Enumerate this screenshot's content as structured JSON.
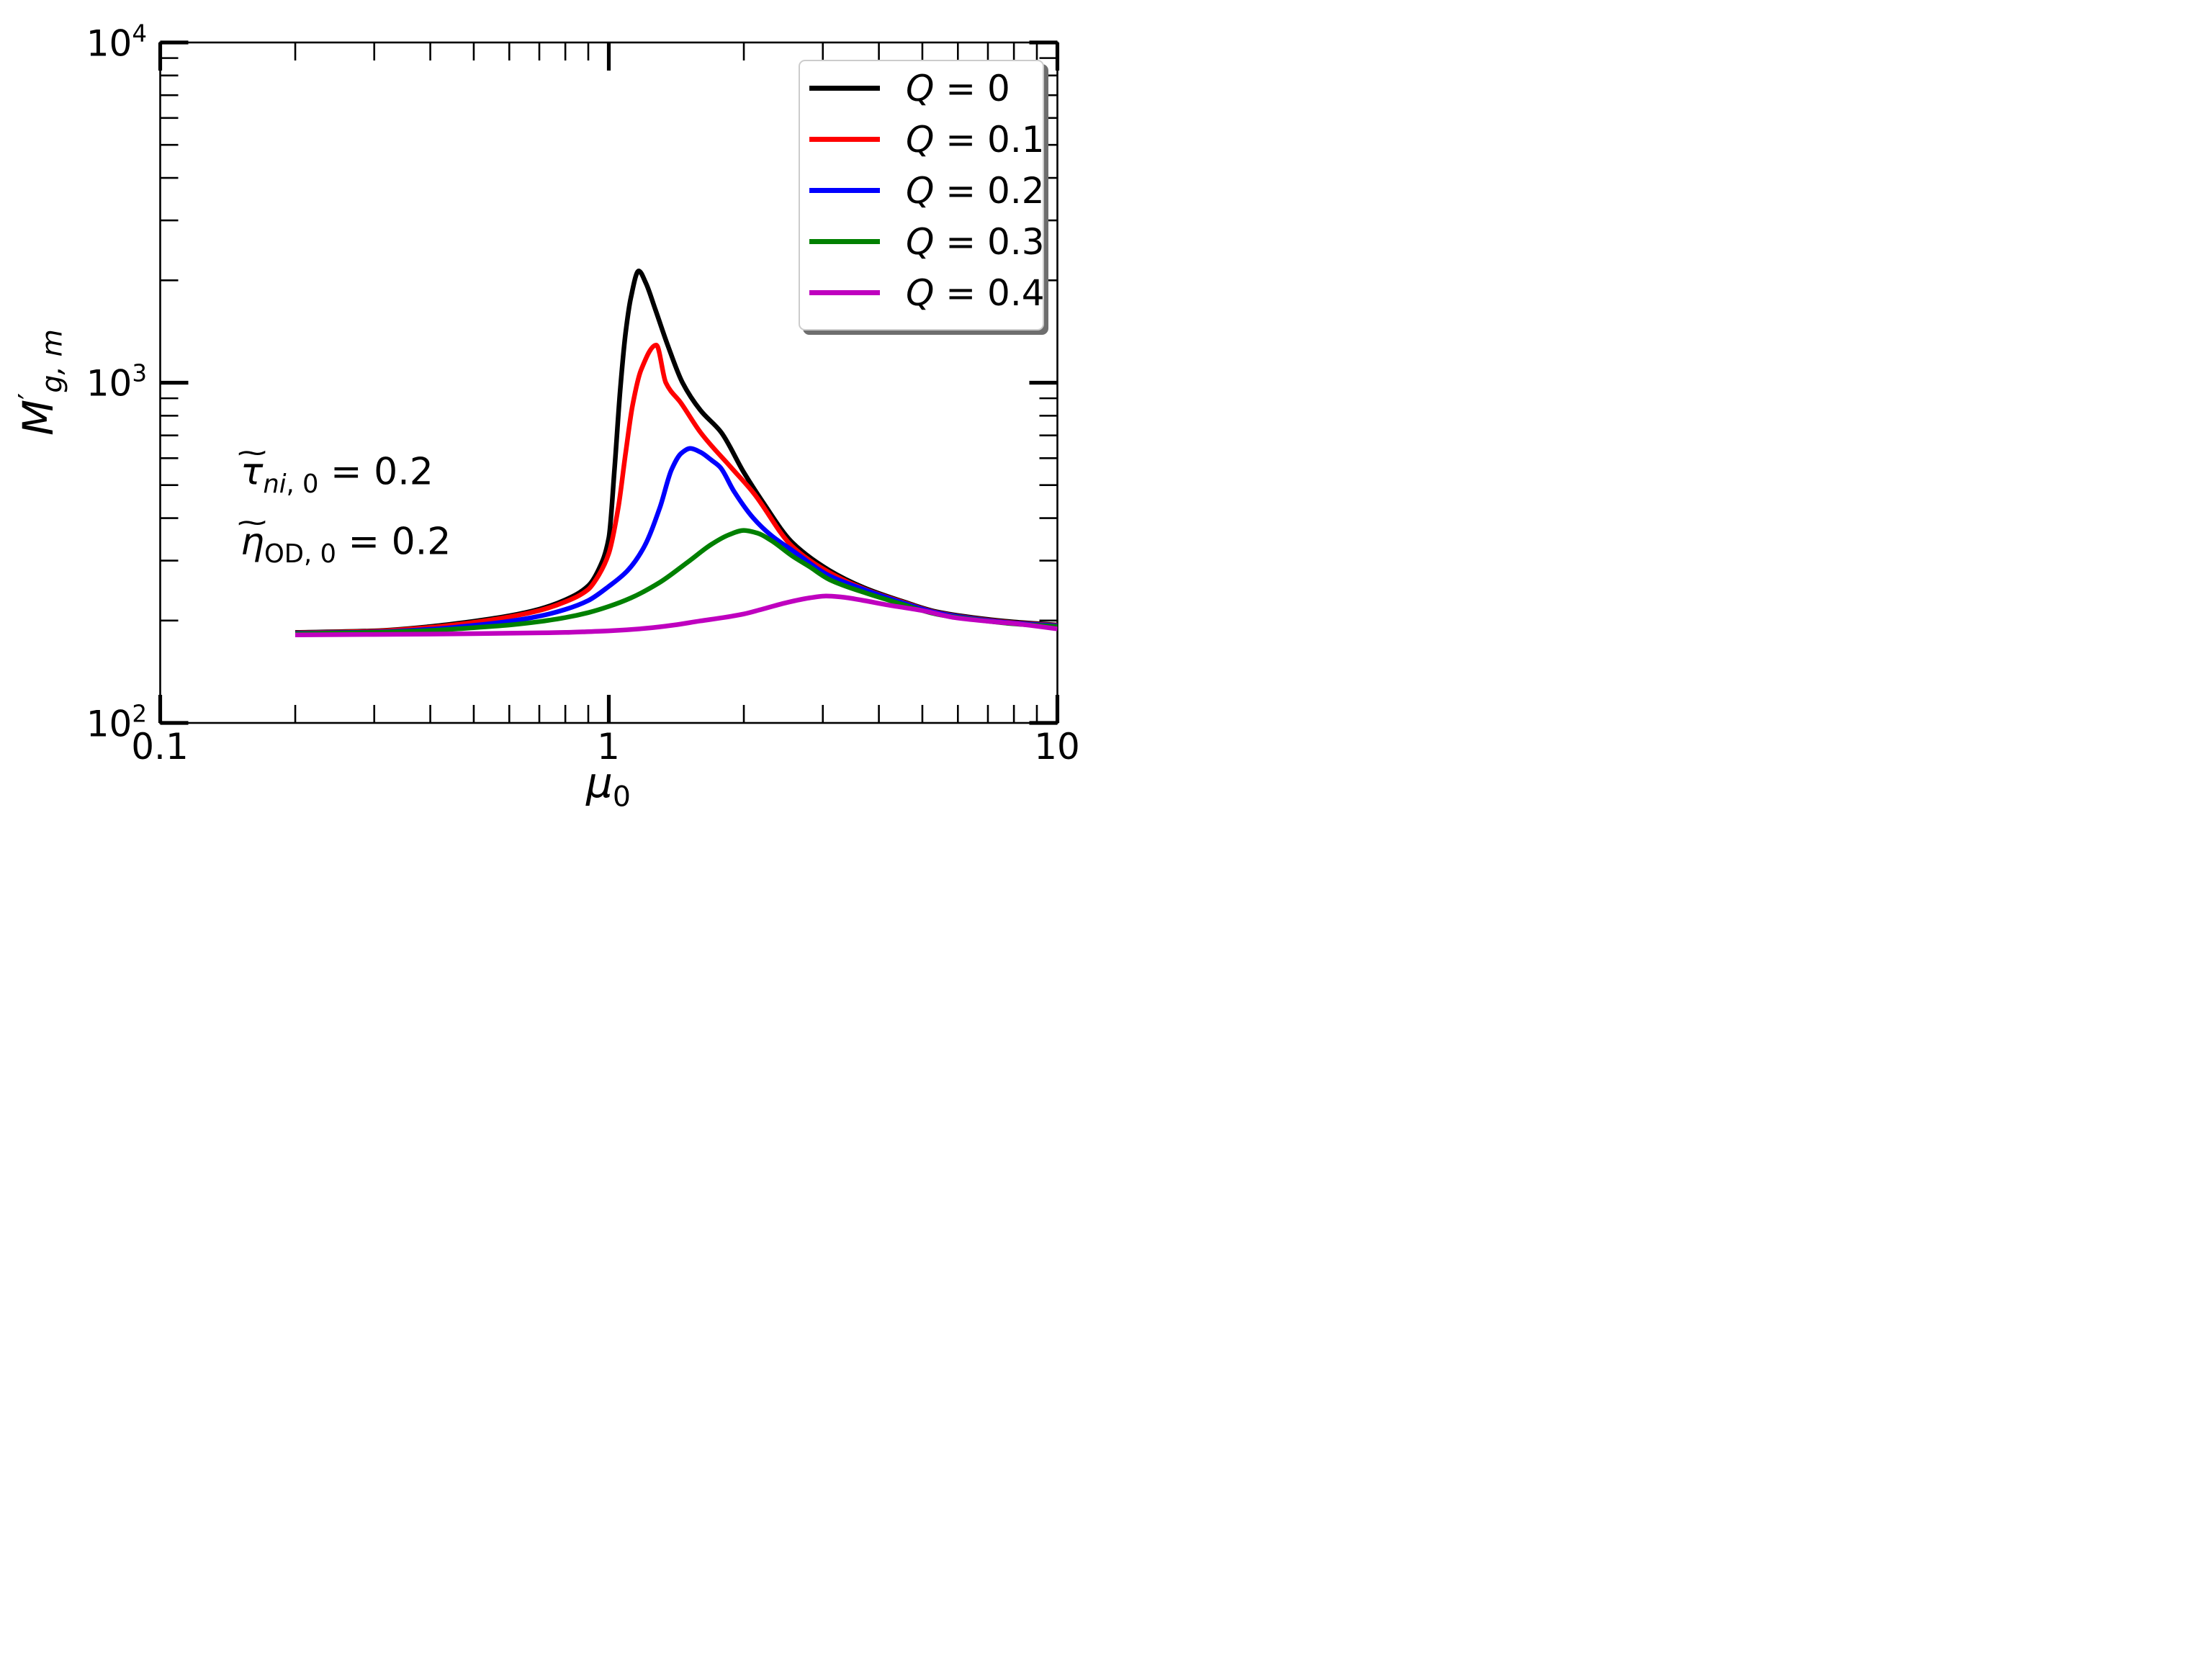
{
  "axes": {
    "xlabel": {
      "base": "μ",
      "sub": "0"
    },
    "ylabel": {
      "base": "M",
      "prime": "′",
      "sub": "g, m"
    },
    "x_tick_labels": [
      {
        "text": "0.1",
        "value": 0.1
      },
      {
        "text": "1",
        "value": 1
      },
      {
        "text": "10",
        "value": 10
      }
    ],
    "y_tick_labels": [
      {
        "base": "10",
        "exp": "2",
        "value": 100
      },
      {
        "base": "10",
        "exp": "3",
        "value": 1000
      },
      {
        "base": "10",
        "exp": "4",
        "value": 10000
      }
    ],
    "x_minor_ticks": [
      0.2,
      0.3,
      0.4,
      0.5,
      0.6,
      0.7,
      0.8,
      0.9,
      2,
      3,
      4,
      5,
      6,
      7,
      8,
      9
    ],
    "x_major_ticks": [
      0.1,
      1,
      10
    ],
    "y_minor_ticks": [
      200,
      300,
      400,
      500,
      600,
      700,
      800,
      900,
      2000,
      3000,
      4000,
      5000,
      6000,
      7000,
      8000,
      9000
    ],
    "y_major_ticks": [
      100,
      1000,
      10000
    ],
    "spine_color": "#000000"
  },
  "annotations": [
    {
      "lead": "τ",
      "tilde": "~",
      "sub_it": "ni",
      "sub_rm": ", 0",
      "rest": " = 0.2"
    },
    {
      "lead": "η",
      "tilde": "~",
      "sub_it": "",
      "sub_rm": "OD, 0",
      "rest": " = 0.2"
    }
  ],
  "legend": {
    "entries": [
      {
        "var": "Q",
        "rest": " = 0",
        "color": "#000000"
      },
      {
        "var": "Q",
        "rest": " = 0.1",
        "color": "#ff0000"
      },
      {
        "var": "Q",
        "rest": " = 0.2",
        "color": "#0000ff"
      },
      {
        "var": "Q",
        "rest": " = 0.3",
        "color": "#008000"
      },
      {
        "var": "Q",
        "rest": " = 0.4",
        "color": "#bf00bf"
      }
    ]
  },
  "chart_data": {
    "type": "line",
    "title": "",
    "xlabel": "mu_0",
    "ylabel": "M'_g,m",
    "xscale": "log",
    "yscale": "log",
    "xlim": [
      0.1,
      10
    ],
    "ylim": [
      100,
      10000
    ],
    "grid": false,
    "legend_position": "upper right",
    "parameters": {
      "tau_ni0": 0.2,
      "eta_OD0": 0.2
    },
    "series": [
      {
        "name": "Q = 0",
        "color": "#000000",
        "points": [
          [
            0.2,
            184.5
          ],
          [
            0.3,
            186.5
          ],
          [
            0.4,
            192
          ],
          [
            0.5,
            199
          ],
          [
            0.6,
            206.5
          ],
          [
            0.7,
            216
          ],
          [
            0.8,
            230
          ],
          [
            0.9,
            253
          ],
          [
            0.95,
            283
          ],
          [
            1.0,
            350
          ],
          [
            1.03,
            560
          ],
          [
            1.06,
            950
          ],
          [
            1.09,
            1400
          ],
          [
            1.12,
            1780
          ],
          [
            1.166,
            2130
          ],
          [
            1.21,
            1960
          ],
          [
            1.27,
            1640
          ],
          [
            1.35,
            1300
          ],
          [
            1.46,
            1000
          ],
          [
            1.6,
            830
          ],
          [
            1.78,
            715
          ],
          [
            2.0,
            545
          ],
          [
            2.2,
            448
          ],
          [
            2.56,
            340
          ],
          [
            3.1,
            281
          ],
          [
            3.7,
            250
          ],
          [
            4.5,
            228
          ],
          [
            5.4,
            212
          ],
          [
            6.5,
            204
          ],
          [
            8.0,
            198
          ],
          [
            10.0,
            194
          ]
        ]
      },
      {
        "name": "Q = 0.1",
        "color": "#ff0000",
        "points": [
          [
            0.2,
            184
          ],
          [
            0.3,
            186
          ],
          [
            0.4,
            191
          ],
          [
            0.5,
            197.5
          ],
          [
            0.6,
            205
          ],
          [
            0.7,
            214
          ],
          [
            0.8,
            227
          ],
          [
            0.9,
            247
          ],
          [
            0.95,
            272
          ],
          [
            1.0,
            315
          ],
          [
            1.05,
            430
          ],
          [
            1.09,
            620
          ],
          [
            1.13,
            860
          ],
          [
            1.18,
            1090
          ],
          [
            1.276,
            1290
          ],
          [
            1.34,
            1000
          ],
          [
            1.45,
            870
          ],
          [
            1.6,
            715
          ],
          [
            1.87,
            565
          ],
          [
            2.1,
            475
          ],
          [
            2.56,
            331
          ],
          [
            3.1,
            277
          ],
          [
            3.7,
            248
          ],
          [
            4.5,
            227
          ],
          [
            5.4,
            211
          ],
          [
            6.5,
            203
          ],
          [
            8.0,
            197
          ],
          [
            10.0,
            193.5
          ]
        ]
      },
      {
        "name": "Q = 0.2",
        "color": "#0000ff",
        "points": [
          [
            0.2,
            183.5
          ],
          [
            0.3,
            185
          ],
          [
            0.4,
            188.5
          ],
          [
            0.5,
            193.5
          ],
          [
            0.6,
            199
          ],
          [
            0.7,
            206
          ],
          [
            0.8,
            215.5
          ],
          [
            0.9,
            229
          ],
          [
            1.0,
            252
          ],
          [
            1.1,
            280
          ],
          [
            1.2,
            330
          ],
          [
            1.3,
            430
          ],
          [
            1.38,
            555
          ],
          [
            1.45,
            620
          ],
          [
            1.52,
            641
          ],
          [
            1.6,
            625
          ],
          [
            1.7,
            590
          ],
          [
            1.77,
            565
          ],
          [
            1.9,
            480
          ],
          [
            2.1,
            400
          ],
          [
            2.3,
            356
          ],
          [
            2.56,
            322
          ],
          [
            3.1,
            271
          ],
          [
            3.7,
            247
          ],
          [
            4.5,
            226
          ],
          [
            5.4,
            210.5
          ],
          [
            6.5,
            202.5
          ],
          [
            8.0,
            196.5
          ],
          [
            10.0,
            193
          ]
        ]
      },
      {
        "name": "Q = 0.3",
        "color": "#008000",
        "points": [
          [
            0.2,
            183
          ],
          [
            0.3,
            184.5
          ],
          [
            0.4,
            187
          ],
          [
            0.5,
            190.5
          ],
          [
            0.6,
            194
          ],
          [
            0.7,
            198.5
          ],
          [
            0.8,
            204
          ],
          [
            0.9,
            211
          ],
          [
            1.0,
            220
          ],
          [
            1.12,
            233
          ],
          [
            1.3,
            259
          ],
          [
            1.5,
            297
          ],
          [
            1.7,
            336
          ],
          [
            1.85,
            357
          ],
          [
            2.0,
            368
          ],
          [
            2.15,
            361
          ],
          [
            2.3,
            344
          ],
          [
            2.56,
            310
          ],
          [
            2.8,
            288
          ],
          [
            3.1,
            264
          ],
          [
            3.7,
            242
          ],
          [
            4.5,
            223.5
          ],
          [
            5.4,
            208.5
          ],
          [
            6.5,
            201.5
          ],
          [
            8.0,
            195.5
          ],
          [
            10.0,
            192
          ]
        ]
      },
      {
        "name": "Q = 0.4",
        "color": "#bf00bf",
        "points": [
          [
            0.2,
            181.5
          ],
          [
            0.3,
            182
          ],
          [
            0.4,
            182.5
          ],
          [
            0.5,
            183
          ],
          [
            0.6,
            183.5
          ],
          [
            0.7,
            184
          ],
          [
            0.8,
            184.5
          ],
          [
            0.9,
            185.5
          ],
          [
            1.0,
            186.5
          ],
          [
            1.2,
            189.5
          ],
          [
            1.4,
            194
          ],
          [
            1.6,
            199.5
          ],
          [
            1.8,
            204
          ],
          [
            2.0,
            209
          ],
          [
            2.2,
            216
          ],
          [
            2.5,
            226
          ],
          [
            2.8,
            233
          ],
          [
            3.05,
            236
          ],
          [
            3.3,
            234.5
          ],
          [
            3.7,
            229
          ],
          [
            4.2,
            222
          ],
          [
            5.0,
            214
          ],
          [
            5.9,
            204
          ],
          [
            7.0,
            199
          ],
          [
            8.0,
            196
          ],
          [
            9.0,
            192.5
          ],
          [
            10.0,
            189
          ]
        ]
      }
    ]
  }
}
